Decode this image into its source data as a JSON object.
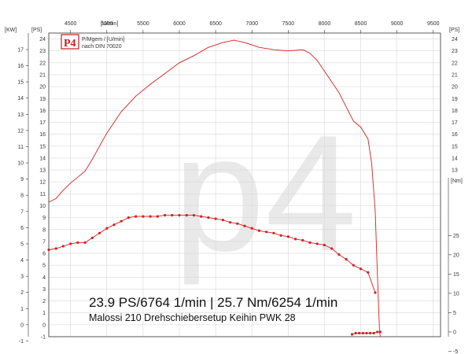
{
  "header": {
    "logo_text": "P4",
    "legend_line1": "P/Mgem / [U/min]",
    "legend_line2": "nach DIN 70020"
  },
  "summary": {
    "peaks": "23.9 PS/6764 1/min | 25.7 Nm/6254 1/min",
    "setup": "Malossi 210 Drehschiebersetup Keihin PWK 28"
  },
  "watermark": "p4",
  "chart_data": {
    "type": "line",
    "title": "",
    "x_unit": "[U/min]",
    "x_ticks": [
      4500,
      5000,
      5500,
      6000,
      6500,
      7000,
      7500,
      8000,
      8500,
      9000,
      9500
    ],
    "xlim": [
      4200,
      9600
    ],
    "left_outer_axis": {
      "unit": "[KW]",
      "ticks": [
        -1,
        0,
        1,
        2,
        3,
        4,
        5,
        6,
        7,
        8,
        9,
        10,
        11,
        12,
        13,
        14,
        15,
        16,
        17
      ]
    },
    "left_inner_axis": {
      "unit": "[PS]",
      "ylim": [
        -1,
        24.5
      ],
      "ticks": [
        -1,
        0,
        1,
        2,
        3,
        4,
        5,
        6,
        7,
        8,
        9,
        10,
        11,
        12,
        13,
        14,
        15,
        16,
        17,
        18,
        19,
        20,
        21,
        22,
        23,
        24
      ]
    },
    "right_upper_axis": {
      "unit": "[PS]",
      "ticks": [
        13,
        14,
        15,
        16,
        17,
        18,
        19,
        20,
        21,
        22,
        23,
        24
      ]
    },
    "right_lower_axis": {
      "unit": "[Nm]",
      "ticks": [
        -5,
        0,
        5,
        10,
        15,
        20,
        25
      ]
    },
    "series": [
      {
        "color": "#d42020",
        "markers": false,
        "x": [
          4200,
          4300,
          4400,
          4500,
          4600,
          4700,
          4800,
          5000,
          5200,
          5400,
          5600,
          5800,
          6000,
          6200,
          6400,
          6600,
          6750,
          6900,
          7100,
          7300,
          7500,
          7700,
          7800,
          7900,
          8000,
          8100,
          8200,
          8300,
          8400,
          8500,
          8600,
          8650,
          8700,
          8720,
          8740,
          8760,
          8770
        ],
        "y": [
          10.3,
          10.6,
          11.3,
          11.9,
          12.4,
          12.9,
          13.9,
          16.1,
          17.9,
          19.2,
          20.2,
          21.1,
          22.0,
          22.6,
          23.3,
          23.7,
          23.9,
          23.7,
          23.3,
          23.1,
          23.0,
          23.1,
          22.8,
          22.2,
          21.3,
          20.4,
          19.5,
          18.3,
          17.1,
          16.6,
          15.6,
          13.6,
          9.5,
          6.0,
          2.5,
          -0.6,
          -1.0
        ]
      },
      {
        "color": "#d42020",
        "markers": true,
        "x": [
          4200,
          4300,
          4400,
          4500,
          4600,
          4700,
          4800,
          4900,
          5000,
          5100,
          5200,
          5300,
          5400,
          5500,
          5600,
          5700,
          5800,
          5900,
          6000,
          6100,
          6200,
          6300,
          6400,
          6500,
          6600,
          6700,
          6800,
          6900,
          7000,
          7100,
          7200,
          7300,
          7400,
          7500,
          7600,
          7700,
          7800,
          7900,
          8000,
          8100,
          8200,
          8300,
          8400,
          8500,
          8600,
          8700
        ],
        "y": [
          6.3,
          6.4,
          6.6,
          6.8,
          6.9,
          6.9,
          7.3,
          7.7,
          8.1,
          8.4,
          8.7,
          9.0,
          9.1,
          9.1,
          9.1,
          9.1,
          9.2,
          9.2,
          9.2,
          9.2,
          9.2,
          9.1,
          9.0,
          8.9,
          8.8,
          8.6,
          8.5,
          8.3,
          8.1,
          7.9,
          7.8,
          7.7,
          7.5,
          7.4,
          7.2,
          7.1,
          6.9,
          6.8,
          6.7,
          6.4,
          5.9,
          5.5,
          5.0,
          4.7,
          4.4,
          2.7
        ]
      },
      {
        "color": "#d42020",
        "markers": true,
        "x": [
          8380,
          8430,
          8480,
          8530,
          8580,
          8630,
          8680,
          8730,
          8770
        ],
        "y": [
          -0.8,
          -0.7,
          -0.7,
          -0.7,
          -0.7,
          -0.7,
          -0.7,
          -0.6,
          -0.6
        ]
      }
    ]
  }
}
